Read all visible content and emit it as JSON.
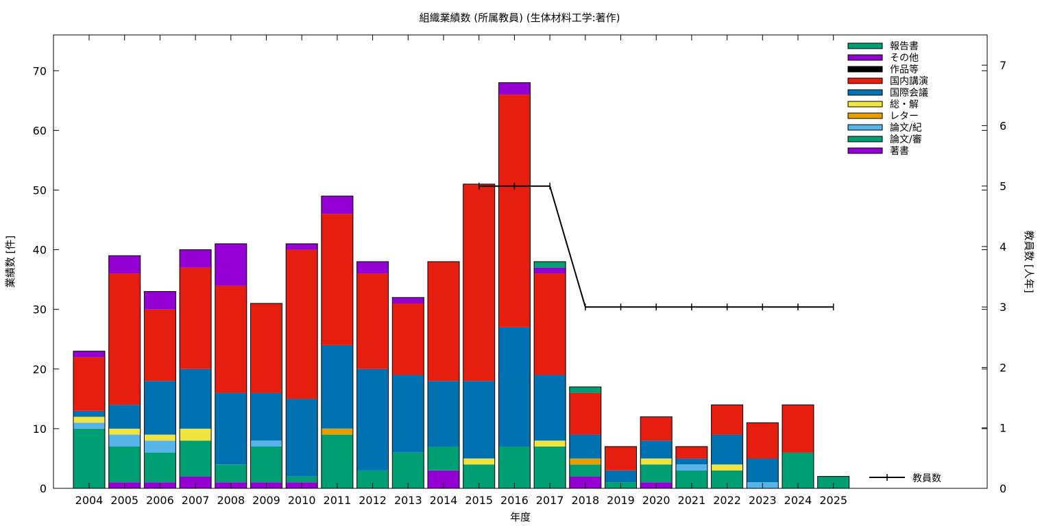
{
  "chart_data": {
    "type": "bar",
    "stacked": true,
    "title": "組織業績数 (所属教員) (生体材料工学:著作)",
    "xlabel": "年度",
    "ylabel": "業績数 [件]",
    "y2label": "教員数 [人年]",
    "ylim": [
      0,
      76
    ],
    "y2lim": [
      0,
      7.5
    ],
    "yticks": [
      "0",
      "10",
      "20",
      "30",
      "40",
      "50",
      "60",
      "70"
    ],
    "y2ticks": [
      "0",
      "1",
      "2",
      "3",
      "4",
      "5",
      "6",
      "7"
    ],
    "grid": false,
    "legend_position": "top-right",
    "categories": [
      "2004",
      "2005",
      "2006",
      "2007",
      "2008",
      "2009",
      "2010",
      "2011",
      "2012",
      "2013",
      "2014",
      "2015",
      "2016",
      "2017",
      "2018",
      "2019",
      "2020",
      "2021",
      "2022",
      "2023",
      "2024",
      "2025"
    ],
    "series": [
      {
        "name": "著書",
        "color": "#9400d3",
        "values": [
          0,
          1,
          1,
          2,
          1,
          1,
          1,
          0,
          0,
          0,
          3,
          0,
          0,
          0,
          2,
          0,
          1,
          0,
          0,
          0,
          0,
          0
        ]
      },
      {
        "name": "論文/審",
        "color": "#009e73",
        "values": [
          10,
          6,
          5,
          6,
          3,
          6,
          1,
          9,
          3,
          6,
          4,
          4,
          7,
          7,
          2,
          1,
          3,
          3,
          3,
          0,
          6,
          2
        ]
      },
      {
        "name": "論文/紀",
        "color": "#56b4e9",
        "values": [
          1,
          2,
          2,
          0,
          0,
          1,
          0,
          0,
          0,
          0,
          0,
          0,
          0,
          0,
          0,
          0,
          0,
          1,
          0,
          1,
          0,
          0
        ]
      },
      {
        "name": "レター",
        "color": "#e69f00",
        "values": [
          0,
          0,
          0,
          0,
          0,
          0,
          0,
          1,
          0,
          0,
          0,
          0,
          0,
          0,
          1,
          0,
          0,
          0,
          0,
          0,
          0,
          0
        ]
      },
      {
        "name": "総・解",
        "color": "#f0e442",
        "values": [
          1,
          1,
          1,
          2,
          0,
          0,
          0,
          0,
          0,
          0,
          0,
          1,
          0,
          1,
          0,
          0,
          1,
          0,
          1,
          0,
          0,
          0
        ]
      },
      {
        "name": "国際会議",
        "color": "#0072b2",
        "values": [
          1,
          4,
          9,
          10,
          12,
          8,
          13,
          14,
          17,
          13,
          11,
          13,
          20,
          11,
          4,
          2,
          3,
          1,
          5,
          4,
          0,
          0
        ]
      },
      {
        "name": "国内講演",
        "color": "#e51e10",
        "values": [
          9,
          22,
          12,
          17,
          18,
          15,
          25,
          22,
          16,
          12,
          20,
          33,
          39,
          17,
          7,
          4,
          4,
          2,
          5,
          6,
          8,
          0
        ]
      },
      {
        "name": "作品等",
        "color": "#000000",
        "values": [
          0,
          0,
          0,
          0,
          0,
          0,
          0,
          0,
          0,
          0,
          0,
          0,
          0,
          0,
          0,
          0,
          0,
          0,
          0,
          0,
          0,
          0
        ]
      },
      {
        "name": "その他",
        "color": "#9400d3",
        "values": [
          1,
          3,
          3,
          3,
          7,
          0,
          1,
          3,
          2,
          1,
          0,
          0,
          2,
          1,
          0,
          0,
          0,
          0,
          0,
          0,
          0,
          0
        ]
      },
      {
        "name": "報告書",
        "color": "#009e73",
        "values": [
          0,
          0,
          0,
          0,
          0,
          0,
          0,
          0,
          0,
          0,
          0,
          0,
          0,
          1,
          1,
          0,
          0,
          0,
          0,
          0,
          0,
          0
        ]
      }
    ],
    "line": {
      "name": "教員数",
      "axis": "right",
      "color": "#000000",
      "x": [
        "2015",
        "2016",
        "2017",
        "2018",
        "2019",
        "2020",
        "2021",
        "2022",
        "2023",
        "2024",
        "2025"
      ],
      "values": [
        5,
        5,
        5,
        3,
        3,
        3,
        3,
        3,
        3,
        3,
        3
      ]
    }
  }
}
